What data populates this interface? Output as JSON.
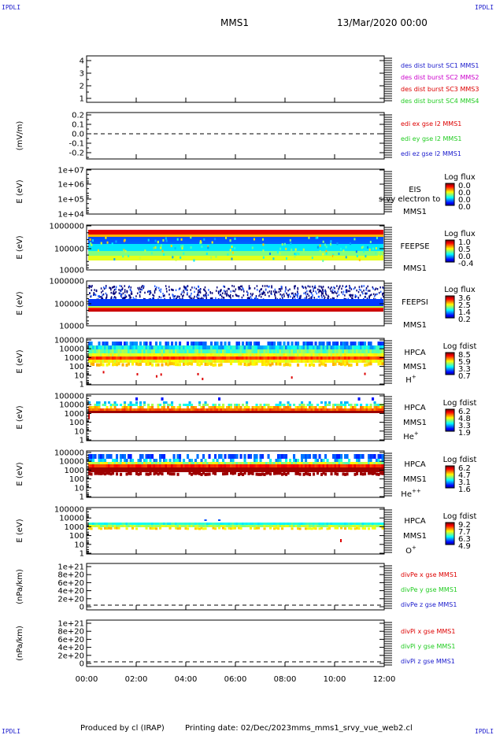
{
  "corners": {
    "tl": "IPDLI",
    "tr": "IPDLI",
    "bl": "IPDLI",
    "br": "IPDLI"
  },
  "header": {
    "spacecraft": "MMS1",
    "datetime": "13/Mar/2020 00:00"
  },
  "footer": {
    "producer": "Produced by cl (IRAP)",
    "printing": "Printing date: 02/Dec/2023",
    "file": "mms_mms1_srvy_vue_web2.cl"
  },
  "colors": {
    "blue": "#1a1acc",
    "magenta": "#cc00cc",
    "red": "#dd0000",
    "green": "#22cc22"
  },
  "chart_data": [
    {
      "type": "line",
      "name": "panel1",
      "yticks": [
        "4",
        "3",
        "2",
        "1"
      ],
      "ylim": [
        0.7,
        4.4
      ],
      "legend": [
        {
          "text": "des dist burst SC1 MMS1",
          "color": "#1a1acc"
        },
        {
          "text": "des dist burst SC2 MMS2",
          "color": "#cc00cc"
        },
        {
          "text": "des dist burst SC3 MMS3",
          "color": "#dd0000"
        },
        {
          "text": "des dist burst SC4 MMS4",
          "color": "#22cc22"
        }
      ]
    },
    {
      "type": "line",
      "name": "panel2",
      "ylabel": "(mV/m)",
      "yticks": [
        "0.2",
        "0.1",
        "0.0",
        "-0.1",
        "-0.2"
      ],
      "ylim": [
        -0.25,
        0.25
      ],
      "zero_line": true,
      "legend": [
        {
          "text": "edi ex gse l2 MMS1",
          "color": "#dd0000"
        },
        {
          "text": "edi ey gse l2 MMS1",
          "color": "#22cc22"
        },
        {
          "text": "edi ez gse l2 MMS1",
          "color": "#1a1acc"
        }
      ]
    },
    {
      "type": "heatmap",
      "name": "panel3",
      "ylabel": "E (eV)",
      "yticks": [
        "1e+07",
        "1e+06",
        "1e+05",
        "1e+04"
      ],
      "ylog": true,
      "labels": [
        "EIS",
        "MMS1"
      ],
      "overlay": "srvy electron to",
      "cbar_title": "Log flux",
      "cbar_ticks": [
        "0.0",
        "0.0",
        "0.0",
        "0.0"
      ]
    },
    {
      "type": "heatmap",
      "name": "panel4",
      "ylabel": "E (eV)",
      "yticks": [
        "1000000",
        "100000",
        "10000"
      ],
      "ylog": true,
      "labels": [
        "FEEPSE",
        "MMS1"
      ],
      "cbar_title": "Log flux",
      "cbar_ticks": [
        "1.0",
        "0.5",
        "0.0",
        "-0.4"
      ]
    },
    {
      "type": "heatmap",
      "name": "panel5",
      "ylabel": "E (eV)",
      "yticks": [
        "1000000",
        "100000",
        "10000"
      ],
      "ylog": true,
      "labels": [
        "FEEPSI",
        "MMS1"
      ],
      "cbar_title": "Log flux",
      "cbar_ticks": [
        "3.6",
        "2.5",
        "1.4",
        "0.2"
      ]
    },
    {
      "type": "heatmap",
      "name": "panel6",
      "ylabel": "E (eV)",
      "yticks": [
        "100000",
        "10000",
        "1000",
        "100",
        "10",
        "1"
      ],
      "ylog": true,
      "labels": [
        "HPCA",
        "MMS1"
      ],
      "species": {
        "base": "H",
        "sup": "+"
      },
      "cbar_title": "Log fdist",
      "cbar_ticks": [
        "8.5",
        "5.9",
        "3.3",
        "0.7"
      ]
    },
    {
      "type": "heatmap",
      "name": "panel7",
      "ylabel": "E (eV)",
      "yticks": [
        "100000",
        "10000",
        "1000",
        "100",
        "10",
        "1"
      ],
      "ylog": true,
      "labels": [
        "HPCA",
        "MMS1"
      ],
      "species": {
        "base": "He",
        "sup": "+"
      },
      "cbar_title": "Log fdist",
      "cbar_ticks": [
        "6.2",
        "4.8",
        "3.3",
        "1.9"
      ]
    },
    {
      "type": "heatmap",
      "name": "panel8",
      "ylabel": "E (eV)",
      "yticks": [
        "100000",
        "10000",
        "1000",
        "100",
        "10",
        "1"
      ],
      "ylog": true,
      "labels": [
        "HPCA",
        "MMS1"
      ],
      "species": {
        "base": "He",
        "sup": "++"
      },
      "cbar_title": "Log fdist",
      "cbar_ticks": [
        "6.2",
        "4.7",
        "3.1",
        "1.6"
      ]
    },
    {
      "type": "heatmap",
      "name": "panel9",
      "ylabel": "E (eV)",
      "yticks": [
        "100000",
        "10000",
        "1000",
        "100",
        "10",
        "1"
      ],
      "ylog": true,
      "labels": [
        "HPCA",
        "MMS1"
      ],
      "species": {
        "base": "O",
        "sup": "+"
      },
      "cbar_title": "Log fdist",
      "cbar_ticks": [
        "9.2",
        "7.7",
        "6.3",
        "4.9"
      ]
    },
    {
      "type": "line",
      "name": "panel10",
      "ylabel": "(nPa/km)",
      "yticks": [
        "1e+21",
        "8e+20",
        "6e+20",
        "4e+20",
        "2e+20",
        "0"
      ],
      "ylim": [
        -8e+19,
        1.08e+21
      ],
      "zero_line": true,
      "legend": [
        {
          "text": "divPe x gse MMS1",
          "color": "#dd0000"
        },
        {
          "text": "divPe y gse MMS1",
          "color": "#22cc22"
        },
        {
          "text": "divPe z gse MMS1",
          "color": "#1a1acc"
        }
      ]
    },
    {
      "type": "line",
      "name": "panel11",
      "ylabel": "(nPa/km)",
      "yticks": [
        "1e+21",
        "8e+20",
        "6e+20",
        "4e+20",
        "2e+20",
        "0"
      ],
      "ylim": [
        -8e+19,
        1.08e+21
      ],
      "zero_line": true,
      "legend": [
        {
          "text": "divPi x gse MMS1",
          "color": "#dd0000"
        },
        {
          "text": "divPi y gse MMS1",
          "color": "#22cc22"
        },
        {
          "text": "divPi z gse MMS1",
          "color": "#1a1acc"
        }
      ]
    }
  ],
  "xaxis": {
    "ticks": [
      "00:00",
      "02:00",
      "04:00",
      "06:00",
      "08:00",
      "10:00",
      "12:00"
    ]
  }
}
